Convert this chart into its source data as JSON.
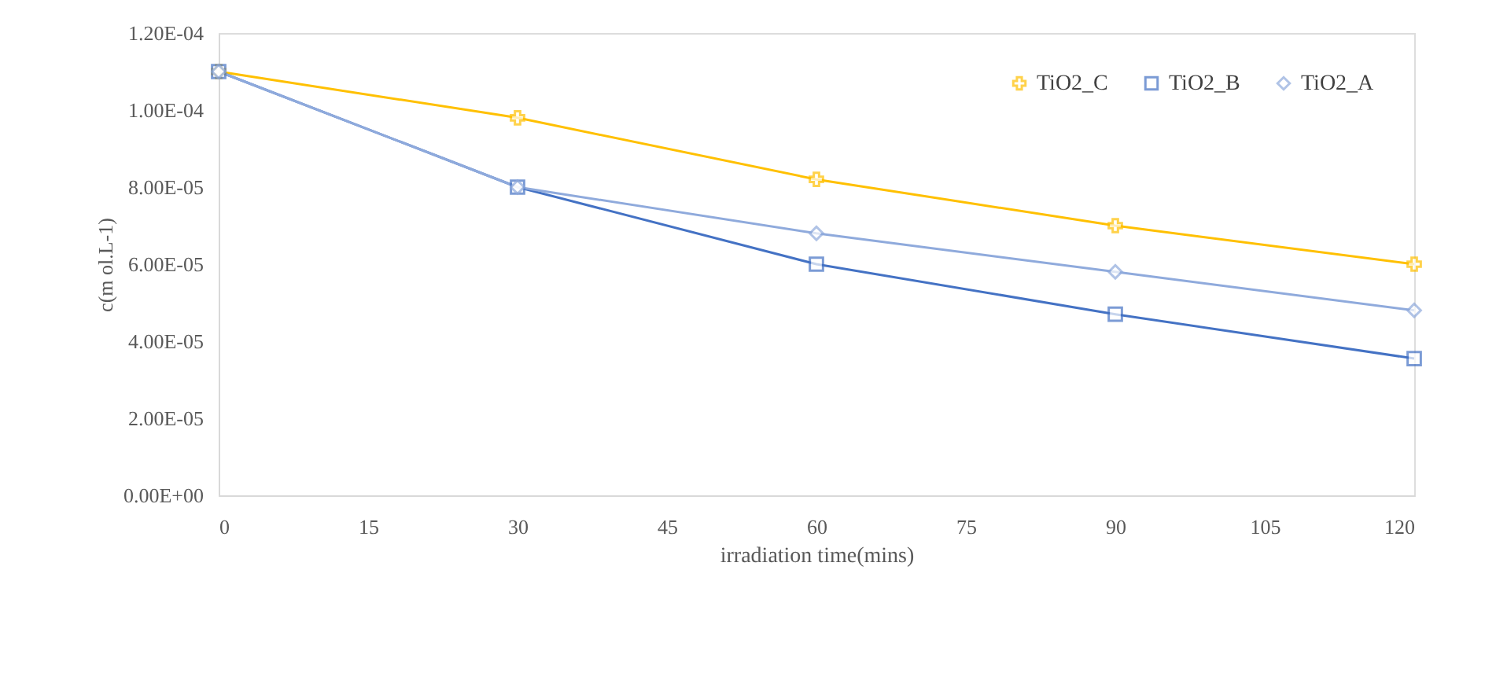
{
  "chart_data": {
    "type": "line",
    "xlabel": "irradiation time(mins)",
    "ylabel": "c(m ol.L-1)",
    "x": [
      0,
      30,
      60,
      90,
      120
    ],
    "series": [
      {
        "name": "TiO2_C",
        "color": "#ffc000",
        "marker": "cross",
        "values": [
          0.00011,
          9.8e-05,
          8.2e-05,
          7e-05,
          6e-05
        ]
      },
      {
        "name": "TiO2_B",
        "color": "#4472c4",
        "marker": "square",
        "values": [
          0.00011,
          8e-05,
          6e-05,
          4.7e-05,
          3.55e-05
        ]
      },
      {
        "name": "TiO2_A",
        "color": "#8faadc",
        "marker": "diamond",
        "values": [
          0.00011,
          8e-05,
          6.8e-05,
          5.8e-05,
          4.8e-05
        ]
      }
    ],
    "xlim": [
      0,
      120
    ],
    "xticks": [
      0,
      15,
      30,
      45,
      60,
      75,
      90,
      105,
      120
    ],
    "ylim": [
      0,
      0.00012
    ],
    "yticks": [
      {
        "value": 0,
        "label": "0.00E+00"
      },
      {
        "value": 2e-05,
        "label": "2.00E-05"
      },
      {
        "value": 4e-05,
        "label": "4.00E-05"
      },
      {
        "value": 6e-05,
        "label": "6.00E-05"
      },
      {
        "value": 8e-05,
        "label": "8.00E-05"
      },
      {
        "value": 0.0001,
        "label": "1.00E-04"
      },
      {
        "value": 0.00012,
        "label": "1.20E-04"
      }
    ],
    "grid": false,
    "legend": "top right",
    "line_style": "solid"
  }
}
